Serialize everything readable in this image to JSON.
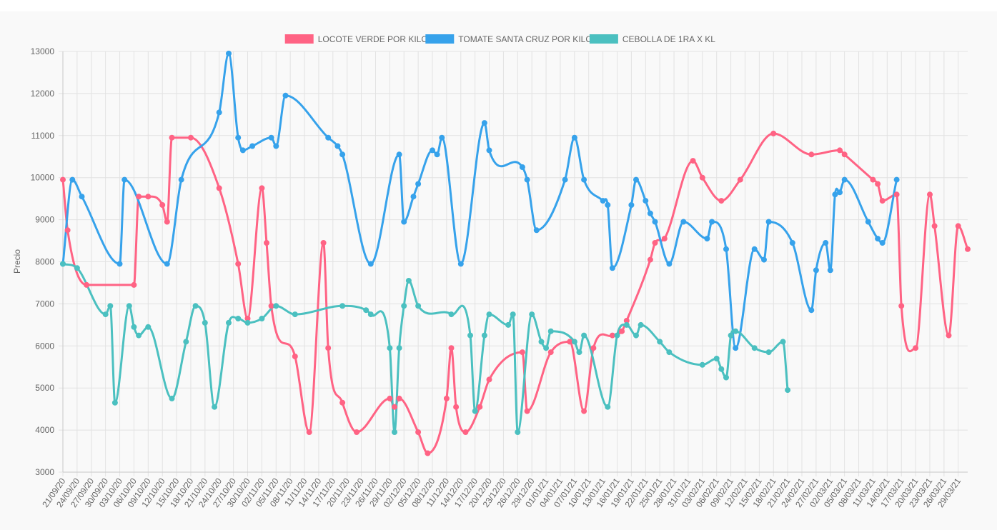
{
  "chart_data": {
    "type": "line",
    "title": "",
    "xlabel": "",
    "ylabel": "Precio",
    "ylim": [
      3000,
      13000
    ],
    "y_ticks": [
      3000,
      4000,
      5000,
      6000,
      7000,
      8000,
      9000,
      10000,
      11000,
      12000,
      13000
    ],
    "grid": true,
    "legend_position": "top",
    "x_tick_labels": [
      "21/09/20",
      "24/09/20",
      "27/09/20",
      "30/09/20",
      "03/10/20",
      "06/10/20",
      "09/10/20",
      "12/10/20",
      "15/10/20",
      "18/10/20",
      "21/10/20",
      "24/10/20",
      "27/10/20",
      "30/10/20",
      "02/11/20",
      "05/11/20",
      "08/11/20",
      "11/11/20",
      "14/11/20",
      "17/11/20",
      "20/11/20",
      "23/11/20",
      "26/11/20",
      "29/11/20",
      "02/12/20",
      "05/12/20",
      "08/12/20",
      "11/12/20",
      "14/12/20",
      "17/12/20",
      "20/12/20",
      "23/12/20",
      "26/12/20",
      "29/12/20",
      "01/01/21",
      "04/01/21",
      "07/01/21",
      "10/01/21",
      "13/01/21",
      "16/01/21",
      "19/01/21",
      "22/01/21",
      "25/01/21",
      "28/01/21",
      "31/01/21",
      "03/02/21",
      "06/02/21",
      "09/02/21",
      "12/02/21",
      "15/02/21",
      "18/02/21",
      "21/02/21",
      "24/02/21",
      "27/02/21",
      "02/03/21",
      "05/03/21",
      "08/03/21",
      "11/03/21",
      "14/03/21",
      "17/03/21",
      "20/03/21",
      "23/03/21",
      "26/03/21",
      "29/03/21"
    ],
    "x_start": "21/09/20",
    "x_end": "31/03/21",
    "series": [
      {
        "name": "LOCOTE VERDE POR KILO",
        "color": "#ff6384",
        "points": [
          [
            "21/09/20",
            9950
          ],
          [
            "22/09/20",
            8750
          ],
          [
            "26/09/20",
            7450
          ],
          [
            "06/10/20",
            7450
          ],
          [
            "07/10/20",
            9550
          ],
          [
            "09/10/20",
            9550
          ],
          [
            "12/10/20",
            9350
          ],
          [
            "13/10/20",
            8950
          ],
          [
            "14/10/20",
            10950
          ],
          [
            "18/10/20",
            10950
          ],
          [
            "24/10/20",
            9750
          ],
          [
            "28/10/20",
            7950
          ],
          [
            "30/10/20",
            6650
          ],
          [
            "02/11/20",
            9750
          ],
          [
            "03/11/20",
            8450
          ],
          [
            "04/11/20",
            6950
          ],
          [
            "09/11/20",
            5750
          ],
          [
            "12/11/20",
            3950
          ],
          [
            "15/11/20",
            8450
          ],
          [
            "16/11/20",
            5950
          ],
          [
            "19/11/20",
            4650
          ],
          [
            "22/11/20",
            3950
          ],
          [
            "29/11/20",
            4750
          ],
          [
            "30/11/20",
            4550
          ],
          [
            "01/12/20",
            4750
          ],
          [
            "05/12/20",
            3950
          ],
          [
            "07/12/20",
            3450
          ],
          [
            "11/12/20",
            4750
          ],
          [
            "12/12/20",
            5950
          ],
          [
            "13/12/20",
            4550
          ],
          [
            "15/12/20",
            3950
          ],
          [
            "18/12/20",
            4550
          ],
          [
            "20/12/20",
            5200
          ],
          [
            "27/12/20",
            5850
          ],
          [
            "28/12/20",
            4450
          ],
          [
            "02/01/21",
            5850
          ],
          [
            "06/01/21",
            6100
          ],
          [
            "09/01/21",
            4450
          ],
          [
            "11/01/21",
            5950
          ],
          [
            "15/01/21",
            6250
          ],
          [
            "17/01/21",
            6350
          ],
          [
            "18/01/21",
            6600
          ],
          [
            "23/01/21",
            8050
          ],
          [
            "24/01/21",
            8450
          ],
          [
            "26/01/21",
            8550
          ],
          [
            "01/02/21",
            10400
          ],
          [
            "03/02/21",
            10000
          ],
          [
            "07/02/21",
            9450
          ],
          [
            "11/02/21",
            9950
          ],
          [
            "18/02/21",
            11050
          ],
          [
            "26/02/21",
            10550
          ],
          [
            "04/03/21",
            10650
          ],
          [
            "05/03/21",
            10550
          ],
          [
            "11/03/21",
            9950
          ],
          [
            "12/03/21",
            9850
          ],
          [
            "13/03/21",
            9450
          ],
          [
            "16/03/21",
            9600
          ],
          [
            "17/03/21",
            6950
          ],
          [
            "20/03/21",
            5950
          ],
          [
            "23/03/21",
            9600
          ],
          [
            "24/03/21",
            8850
          ],
          [
            "27/03/21",
            6250
          ],
          [
            "29/03/21",
            8850
          ],
          [
            "31/03/21",
            8300
          ]
        ]
      },
      {
        "name": "TOMATE SANTA CRUZ POR KILO",
        "color": "#36a2eb",
        "points": [
          [
            "21/09/20",
            7950
          ],
          [
            "23/09/20",
            9950
          ],
          [
            "25/09/20",
            9550
          ],
          [
            "03/10/20",
            7950
          ],
          [
            "04/10/20",
            9950
          ],
          [
            "13/10/20",
            7950
          ],
          [
            "16/10/20",
            9950
          ],
          [
            "24/10/20",
            11550
          ],
          [
            "26/10/20",
            12950
          ],
          [
            "28/10/20",
            10950
          ],
          [
            "29/10/20",
            10650
          ],
          [
            "31/10/20",
            10750
          ],
          [
            "04/11/20",
            10950
          ],
          [
            "05/11/20",
            10750
          ],
          [
            "07/11/20",
            11950
          ],
          [
            "16/11/20",
            10950
          ],
          [
            "18/11/20",
            10750
          ],
          [
            "19/11/20",
            10550
          ],
          [
            "25/11/20",
            7950
          ],
          [
            "01/12/20",
            10550
          ],
          [
            "02/12/20",
            8950
          ],
          [
            "04/12/20",
            9550
          ],
          [
            "05/12/20",
            9850
          ],
          [
            "08/12/20",
            10650
          ],
          [
            "09/12/20",
            10550
          ],
          [
            "10/12/20",
            10950
          ],
          [
            "14/12/20",
            7950
          ],
          [
            "19/12/20",
            11300
          ],
          [
            "20/12/20",
            10650
          ],
          [
            "27/12/20",
            10250
          ],
          [
            "28/12/20",
            9950
          ],
          [
            "30/12/20",
            8750
          ],
          [
            "05/01/21",
            9950
          ],
          [
            "07/01/21",
            10950
          ],
          [
            "09/01/21",
            9950
          ],
          [
            "13/01/21",
            9450
          ],
          [
            "14/01/21",
            9350
          ],
          [
            "15/01/21",
            7850
          ],
          [
            "19/01/21",
            9350
          ],
          [
            "20/01/21",
            9950
          ],
          [
            "22/01/21",
            9450
          ],
          [
            "23/01/21",
            9150
          ],
          [
            "24/01/21",
            8950
          ],
          [
            "27/01/21",
            7950
          ],
          [
            "30/01/21",
            8950
          ],
          [
            "04/02/21",
            8550
          ],
          [
            "05/02/21",
            8950
          ],
          [
            "08/02/21",
            8300
          ],
          [
            "10/02/21",
            5950
          ],
          [
            "14/02/21",
            8300
          ],
          [
            "16/02/21",
            8050
          ],
          [
            "17/02/21",
            8950
          ],
          [
            "22/02/21",
            8450
          ],
          [
            "26/02/21",
            6850
          ],
          [
            "27/02/21",
            7800
          ],
          [
            "01/03/21",
            8450
          ],
          [
            "02/03/21",
            7800
          ],
          [
            "03/03/21",
            9600
          ],
          [
            "04/03/21",
            9650
          ],
          [
            "05/03/21",
            9950
          ],
          [
            "10/03/21",
            8950
          ],
          [
            "12/03/21",
            8550
          ],
          [
            "13/03/21",
            8450
          ],
          [
            "16/03/21",
            9950
          ]
        ]
      },
      {
        "name": "CEBOLLA DE 1RA X KL",
        "color": "#4bc0c0",
        "points": [
          [
            "21/09/20",
            7950
          ],
          [
            "24/09/20",
            7850
          ],
          [
            "30/09/20",
            6750
          ],
          [
            "01/10/20",
            6950
          ],
          [
            "02/10/20",
            4650
          ],
          [
            "05/10/20",
            6950
          ],
          [
            "06/10/20",
            6450
          ],
          [
            "07/10/20",
            6250
          ],
          [
            "09/10/20",
            6450
          ],
          [
            "14/10/20",
            4750
          ],
          [
            "17/10/20",
            6100
          ],
          [
            "19/10/20",
            6950
          ],
          [
            "21/10/20",
            6550
          ],
          [
            "23/10/20",
            4550
          ],
          [
            "26/10/20",
            6550
          ],
          [
            "28/10/20",
            6650
          ],
          [
            "30/10/20",
            6550
          ],
          [
            "02/11/20",
            6650
          ],
          [
            "05/11/20",
            6950
          ],
          [
            "09/11/20",
            6750
          ],
          [
            "19/11/20",
            6950
          ],
          [
            "24/11/20",
            6850
          ],
          [
            "25/11/20",
            6750
          ],
          [
            "29/11/20",
            5950
          ],
          [
            "30/11/20",
            3950
          ],
          [
            "01/12/20",
            5950
          ],
          [
            "02/12/20",
            6950
          ],
          [
            "03/12/20",
            7550
          ],
          [
            "05/12/20",
            6950
          ],
          [
            "12/12/20",
            6750
          ],
          [
            "16/12/20",
            6250
          ],
          [
            "17/12/20",
            4450
          ],
          [
            "19/12/20",
            6250
          ],
          [
            "20/12/20",
            6750
          ],
          [
            "24/12/20",
            6500
          ],
          [
            "25/12/20",
            6750
          ],
          [
            "26/12/20",
            3950
          ],
          [
            "29/12/20",
            6750
          ],
          [
            "31/12/20",
            6100
          ],
          [
            "01/01/21",
            5950
          ],
          [
            "02/01/21",
            6350
          ],
          [
            "07/01/21",
            6100
          ],
          [
            "08/01/21",
            5850
          ],
          [
            "09/01/21",
            6250
          ],
          [
            "14/01/21",
            4550
          ],
          [
            "16/01/21",
            6250
          ],
          [
            "18/01/21",
            6500
          ],
          [
            "20/01/21",
            6250
          ],
          [
            "21/01/21",
            6500
          ],
          [
            "25/01/21",
            6100
          ],
          [
            "27/01/21",
            5850
          ],
          [
            "03/02/21",
            5550
          ],
          [
            "06/02/21",
            5700
          ],
          [
            "07/02/21",
            5450
          ],
          [
            "08/02/21",
            5250
          ],
          [
            "09/02/21",
            6250
          ],
          [
            "10/02/21",
            6350
          ],
          [
            "14/02/21",
            5950
          ],
          [
            "17/02/21",
            5850
          ],
          [
            "20/02/21",
            6100
          ],
          [
            "21/02/21",
            4950
          ]
        ]
      }
    ]
  }
}
